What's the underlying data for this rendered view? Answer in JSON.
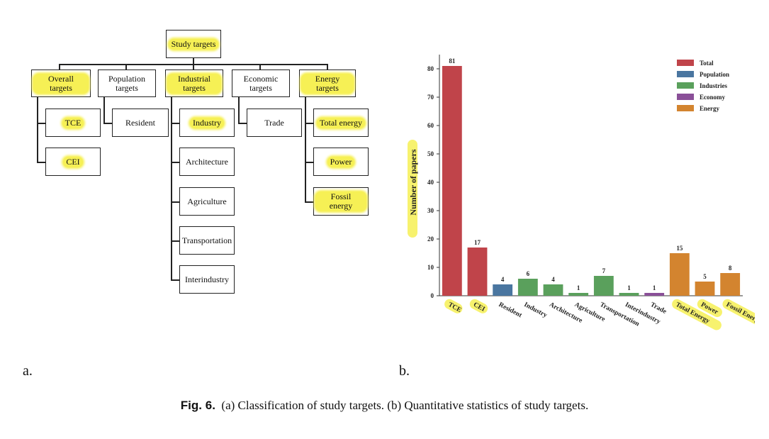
{
  "tree": {
    "root": "Study targets",
    "categories": [
      {
        "label": "Overall targets",
        "children": [
          "TCE",
          "CEI"
        ]
      },
      {
        "label": "Population targets",
        "children": [
          "Resident"
        ]
      },
      {
        "label": "Industrial targets",
        "children": [
          "Industry",
          "Architecture",
          "Agriculture",
          "Transportation",
          "Interindustry"
        ]
      },
      {
        "label": "Economic targets",
        "children": [
          "Trade"
        ]
      },
      {
        "label": "Energy targets",
        "children": [
          "Total energy",
          "Power",
          "Fossil energy"
        ]
      }
    ]
  },
  "chart_data": {
    "type": "bar",
    "categories": [
      "TCE",
      "CEI",
      "Resident",
      "Industry",
      "Architecture",
      "Agriculture",
      "Transportation",
      "Interindustry",
      "Trade",
      "Total Energy",
      "Power",
      "Fossil Energy"
    ],
    "values": [
      81,
      17,
      4,
      6,
      4,
      1,
      7,
      1,
      1,
      15,
      5,
      8
    ],
    "groups": [
      "Total",
      "Total",
      "Population",
      "Industries",
      "Industries",
      "Industries",
      "Industries",
      "Industries",
      "Economy",
      "Energy",
      "Energy",
      "Energy"
    ],
    "legend": [
      "Total",
      "Population",
      "Industries",
      "Economy",
      "Energy"
    ],
    "colors": {
      "Total": "#c0444a",
      "Population": "#4a76a0",
      "Industries": "#5aa05c",
      "Economy": "#8a4f98",
      "Energy": "#d3842f"
    },
    "ylabel": "Number of papers",
    "xlabel": "",
    "ylim": [
      0,
      85
    ],
    "yticks": [
      0,
      10,
      20,
      30,
      40,
      50,
      60,
      70,
      80
    ],
    "legend_position": "top-right",
    "grid": false
  },
  "panel_labels": {
    "a": "a.",
    "b": "b."
  },
  "caption": {
    "label": "Fig. 6.",
    "text": "(a) Classification of study targets. (b) Quantitative statistics of study targets."
  }
}
